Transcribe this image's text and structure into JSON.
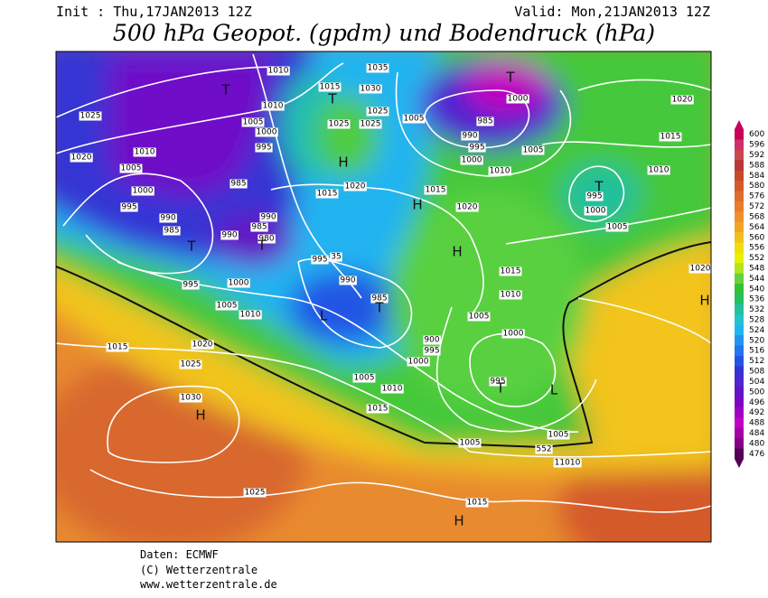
{
  "header": {
    "init": "Init : Thu,17JAN2013 12Z",
    "valid": "Valid: Mon,21JAN2013 12Z",
    "title": "500 hPa Geopot. (gpdm) und Bodendruck (hPa)"
  },
  "footer": [
    "Daten: ECMWF",
    "(C) Wetterzentrale",
    "www.wetterzentrale.de"
  ],
  "colorbar": {
    "values": [
      600,
      596,
      592,
      588,
      584,
      580,
      576,
      572,
      568,
      564,
      560,
      556,
      552,
      548,
      544,
      540,
      536,
      532,
      528,
      524,
      520,
      516,
      512,
      508,
      504,
      500,
      496,
      492,
      488,
      484,
      480,
      476
    ],
    "colors": [
      "#c8005a",
      "#d0306a",
      "#c84850",
      "#b83838",
      "#c44a2c",
      "#d45a2c",
      "#de6c2e",
      "#e67c2e",
      "#ee902e",
      "#f2a424",
      "#f2c01c",
      "#f2dc0c",
      "#e8f000",
      "#b4e41c",
      "#64d23c",
      "#34c034",
      "#22c060",
      "#22c09c",
      "#22c4cc",
      "#22b4f0",
      "#2294f0",
      "#2274f0",
      "#2454e4",
      "#3434d4",
      "#5024d0",
      "#6414c4",
      "#8004c4",
      "#a000c4",
      "#c400c4",
      "#a400a4",
      "#840084",
      "#540054"
    ]
  },
  "map": {
    "labels": [
      "T",
      "1010",
      "1035",
      "1015",
      "1030",
      "T",
      "1025",
      "1005",
      "1010",
      "1025",
      "1025",
      "1025",
      "1005",
      "985",
      "990",
      "995",
      "1000",
      "T",
      "1020",
      "1015",
      "1005",
      "1000",
      "1010",
      "1010",
      "1020",
      "1005",
      "1000",
      "995",
      "H",
      "1020",
      "1015",
      "1015",
      "H",
      "1010",
      "995",
      "T",
      "1000",
      "985",
      "1000",
      "995",
      "990",
      "985",
      "990",
      "990",
      "985",
      "980",
      "T",
      "T",
      "1020",
      "H",
      "995",
      "35",
      "1005",
      "1020",
      "1015",
      "990",
      "1010",
      "995",
      "1000",
      "1005",
      "1010",
      "985",
      "L",
      "T",
      "1005",
      "H",
      "1000",
      "900",
      "995",
      "1000",
      "1015",
      "1020",
      "1025",
      "1005",
      "995",
      "T",
      "L",
      "1010",
      "1030",
      "H",
      "1015",
      "1005",
      "1005",
      "552",
      "11010",
      "1025",
      "1015",
      "H"
    ]
  }
}
